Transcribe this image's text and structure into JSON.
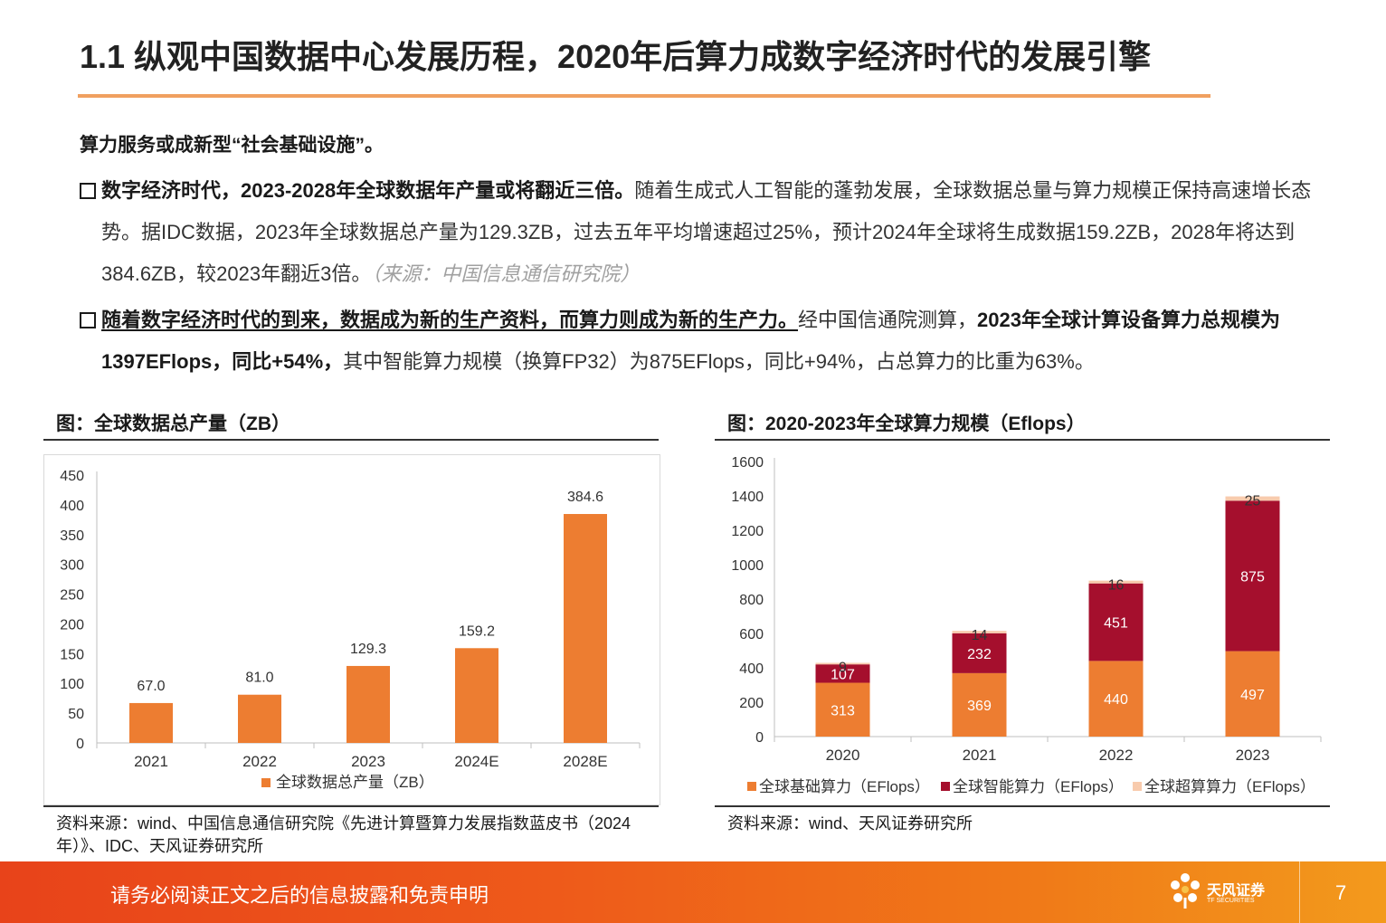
{
  "page": {
    "title": "1.1 纵观中国数据中心发展历程，2020年后算力成数字经济时代的发展引擎",
    "lead": "算力服务或成新型“社会基础设施”。",
    "bullet1": {
      "bold": "数字经济时代，2023-2028年全球数据年产量或将翻近三倍。",
      "text": "随着生成式人工智能的蓬勃发展，全球数据总量与算力规模正保持高速增长态势。据IDC数据，2023年全球数据总产量为129.3ZB，过去五年平均增速超过25%，预计2024年全球将生成数据159.2ZB，2028年将达到384.6ZB，较2023年翻近3倍。",
      "source": "（来源：中国信息通信研究院）"
    },
    "bullet2": {
      "bold_ul": "随着数字经济时代的到来，数据成为新的生产资料，而算力则成为新的生产力。",
      "text1": "经中国信通院测算，",
      "bold2": "2023年全球计算设备算力总规模为1397EFlops，同比+54%，",
      "text2": "其中智能算力规模（换算FP32）为875EFlops，同比+94%，占总算力的比重为63%。"
    },
    "footer": {
      "disclaimer": "请务必阅读正文之后的信息披露和免责申明",
      "page_number": "7",
      "logo_cn": "天风证券",
      "logo_en": "TF SECURITIES"
    }
  },
  "figures": {
    "left": {
      "title": "图：全球数据总产量（ZB）",
      "source": "资料来源：wind、中国信息通信研究院《先进计算暨算力发展指数蓝皮书（2024年）》、IDC、天风证券研究所"
    },
    "right": {
      "title": "图：2020-2023年全球算力规模（Eflops）",
      "source": "资料来源：wind、天风证券研究所"
    }
  },
  "chart_data": [
    {
      "type": "bar",
      "categories": [
        "2021",
        "2022",
        "2023",
        "2024E",
        "2028E"
      ],
      "series": [
        {
          "name": "全球数据总产量（ZB）",
          "values": [
            67.0,
            81.0,
            129.3,
            159.2,
            384.6
          ],
          "color": "#ed7d31"
        }
      ],
      "data_labels": [
        "67.0",
        "81.0",
        "129.3",
        "159.2",
        "384.6"
      ],
      "ylim": [
        0,
        450
      ],
      "yticks": [
        0,
        50,
        100,
        150,
        200,
        250,
        300,
        350,
        400,
        450
      ],
      "legend": "bottom"
    },
    {
      "type": "bar",
      "stacked": true,
      "categories": [
        "2020",
        "2021",
        "2022",
        "2023"
      ],
      "series": [
        {
          "name": "全球基础算力（EFlops）",
          "values": [
            313,
            369,
            440,
            497
          ],
          "color": "#ed7d31",
          "label_color": "#ffffff"
        },
        {
          "name": "全球智能算力（EFlops）",
          "values": [
            107,
            232,
            451,
            875
          ],
          "color": "#a50f2d",
          "label_color": "#ffffff"
        },
        {
          "name": "全球超算算力（EFlops）",
          "values": [
            9,
            14,
            16,
            25
          ],
          "color": "#f8cbad",
          "label_color": "#333333"
        }
      ],
      "ylim": [
        0,
        1600
      ],
      "yticks": [
        0,
        200,
        400,
        600,
        800,
        1000,
        1200,
        1400,
        1600
      ],
      "legend": "bottom"
    }
  ]
}
